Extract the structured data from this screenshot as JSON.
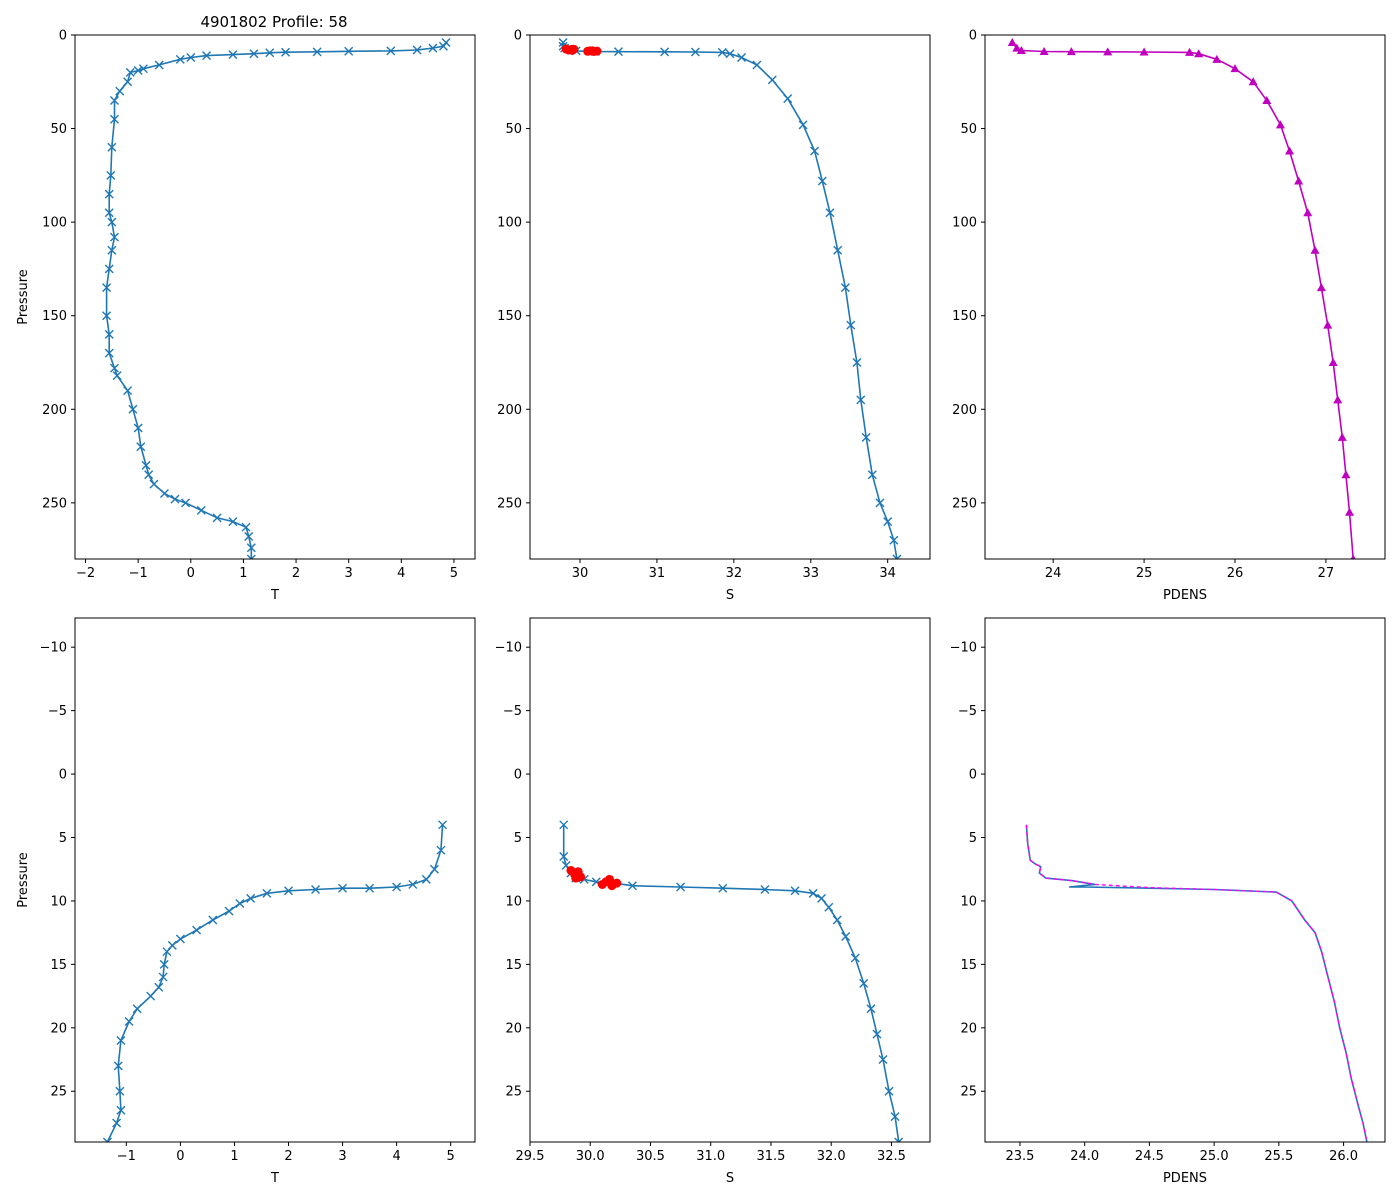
{
  "figure": {
    "title": "4901802 Profile: 58"
  },
  "colors": {
    "series": "#1f77b4",
    "highlight": "#ff0000",
    "density": "#bf00bf",
    "density_dash": "#ff00ff"
  },
  "chart_data": [
    {
      "type": "line",
      "marker": "x",
      "title": "4901802 Profile: 58",
      "xlabel": "T",
      "ylabel": "Pressure",
      "xlim": [
        -2.2,
        5.4
      ],
      "ylim": [
        280,
        0
      ],
      "xticks": [
        -2,
        -1,
        0,
        1,
        2,
        3,
        4,
        5
      ],
      "yticks": [
        0,
        50,
        100,
        150,
        200,
        250
      ],
      "xtick_labels": [
        "−2",
        "−1",
        "0",
        "1",
        "2",
        "3",
        "4",
        "5"
      ],
      "ytick_labels": [
        "0",
        "50",
        "100",
        "150",
        "200",
        "250"
      ],
      "series": [
        {
          "name": "T",
          "color": "#1f77b4",
          "x": [
            4.85,
            4.8,
            4.6,
            4.3,
            3.8,
            3.0,
            2.4,
            1.8,
            1.5,
            1.2,
            0.8,
            0.3,
            0.0,
            -0.2,
            -0.6,
            -0.9,
            -1.0,
            -1.15,
            -1.2,
            -1.35,
            -1.45,
            -1.45,
            -1.5,
            -1.52,
            -1.55,
            -1.55,
            -1.5,
            -1.45,
            -1.5,
            -1.55,
            -1.6,
            -1.6,
            -1.55,
            -1.55,
            -1.45,
            -1.4,
            -1.2,
            -1.1,
            -1.0,
            -0.95,
            -0.85,
            -0.8,
            -0.7,
            -0.5,
            -0.3,
            -0.1,
            0.2,
            0.5,
            0.8,
            1.05,
            1.1,
            1.15,
            1.15
          ],
          "y": [
            4,
            6,
            7,
            8,
            8.5,
            8.7,
            9,
            9.2,
            9.5,
            10,
            10.5,
            11,
            12,
            13,
            16,
            18,
            19,
            20,
            25,
            30,
            35,
            45,
            60,
            75,
            85,
            95,
            100,
            108,
            115,
            125,
            135,
            150,
            160,
            170,
            178,
            182,
            190,
            200,
            210,
            220,
            230,
            235,
            240,
            245,
            248,
            250,
            254,
            258,
            260,
            263,
            268,
            274,
            280
          ]
        }
      ]
    },
    {
      "type": "line",
      "marker": "x",
      "xlabel": "S",
      "ylabel": "",
      "xlim": [
        29.35,
        34.55
      ],
      "ylim": [
        280,
        0
      ],
      "xticks": [
        30,
        31,
        32,
        33,
        34
      ],
      "yticks": [
        0,
        50,
        100,
        150,
        200,
        250
      ],
      "xtick_labels": [
        "30",
        "31",
        "32",
        "33",
        "34"
      ],
      "ytick_labels": [
        "0",
        "50",
        "100",
        "150",
        "200",
        "250"
      ],
      "series": [
        {
          "name": "S",
          "color": "#1f77b4",
          "x": [
            29.78,
            29.78,
            29.8,
            29.85,
            29.95,
            30.2,
            30.5,
            31.1,
            31.5,
            31.85,
            31.95,
            32.1,
            32.3,
            32.5,
            32.7,
            32.9,
            33.05,
            33.15,
            33.25,
            33.35,
            33.45,
            33.52,
            33.6,
            33.65,
            33.72,
            33.8,
            33.9,
            34.0,
            34.08,
            34.12
          ],
          "y": [
            4,
            6,
            7,
            7.5,
            8.5,
            8.8,
            8.9,
            9.0,
            9.1,
            9.3,
            10,
            12,
            16,
            24,
            34,
            48,
            62,
            78,
            95,
            115,
            135,
            155,
            175,
            195,
            215,
            235,
            250,
            260,
            270,
            280
          ]
        }
      ],
      "highlight_points": {
        "color": "#ff0000",
        "x": [
          29.82,
          29.85,
          29.88,
          29.9,
          29.92,
          30.1,
          30.13,
          30.16,
          30.18,
          30.22
        ],
        "y": [
          7.5,
          8.0,
          7.8,
          8.2,
          7.6,
          8.7,
          8.5,
          8.4,
          8.8,
          8.6
        ]
      }
    },
    {
      "type": "line",
      "marker": "^",
      "xlabel": "PDENS",
      "ylabel": "",
      "xlim": [
        23.25,
        27.65
      ],
      "ylim": [
        280,
        0
      ],
      "xticks": [
        24,
        25,
        26,
        27
      ],
      "yticks": [
        0,
        50,
        100,
        150,
        200,
        250
      ],
      "xtick_labels": [
        "24",
        "25",
        "26",
        "27"
      ],
      "ytick_labels": [
        "0",
        "50",
        "100",
        "150",
        "200",
        "250"
      ],
      "series": [
        {
          "name": "PDENS",
          "color": "#bf00bf",
          "x": [
            23.55,
            23.6,
            23.65,
            23.9,
            24.2,
            24.6,
            25.0,
            25.5,
            25.6,
            25.8,
            26.0,
            26.2,
            26.35,
            26.5,
            26.6,
            26.7,
            26.8,
            26.88,
            26.95,
            27.02,
            27.08,
            27.13,
            27.18,
            27.22,
            27.26,
            27.3
          ],
          "y": [
            4,
            7,
            8.3,
            8.8,
            8.9,
            9.0,
            9.1,
            9.3,
            10,
            13,
            18,
            25,
            35,
            48,
            62,
            78,
            95,
            115,
            135,
            155,
            175,
            195,
            215,
            235,
            255,
            280
          ]
        }
      ]
    },
    {
      "type": "line",
      "marker": "x",
      "xlabel": "T",
      "ylabel": "Pressure",
      "xlim": [
        -1.95,
        5.45
      ],
      "ylim": [
        29,
        -12.3
      ],
      "xticks": [
        -1,
        0,
        1,
        2,
        3,
        4,
        5
      ],
      "yticks": [
        -10,
        -5,
        0,
        5,
        10,
        15,
        20,
        25
      ],
      "xtick_labels": [
        "−1",
        "0",
        "1",
        "2",
        "3",
        "4",
        "5"
      ],
      "ytick_labels": [
        "−10",
        "−5",
        "0",
        "5",
        "10",
        "15",
        "20",
        "25"
      ],
      "series": [
        {
          "name": "T",
          "color": "#1f77b4",
          "x": [
            4.85,
            4.82,
            4.7,
            4.55,
            4.3,
            4.0,
            3.5,
            3.0,
            2.5,
            2.0,
            1.6,
            1.3,
            1.1,
            0.9,
            0.6,
            0.3,
            0.0,
            -0.15,
            -0.25,
            -0.3,
            -0.32,
            -0.4,
            -0.55,
            -0.8,
            -0.95,
            -1.1,
            -1.15,
            -1.12,
            -1.1,
            -1.18,
            -1.35
          ],
          "y": [
            4,
            6,
            7.5,
            8.3,
            8.7,
            8.9,
            9.0,
            9.0,
            9.1,
            9.2,
            9.4,
            9.8,
            10.2,
            10.8,
            11.5,
            12.3,
            13.0,
            13.5,
            14,
            15,
            16,
            16.8,
            17.5,
            18.5,
            19.5,
            21,
            23,
            25,
            26.5,
            27.5,
            29
          ]
        }
      ]
    },
    {
      "type": "line",
      "marker": "x",
      "xlabel": "S",
      "ylabel": "",
      "xlim": [
        29.5,
        32.82
      ],
      "ylim": [
        29,
        -12.3
      ],
      "xticks": [
        29.5,
        30.0,
        30.5,
        31.0,
        31.5,
        32.0,
        32.5
      ],
      "yticks": [
        -10,
        -5,
        0,
        5,
        10,
        15,
        20,
        25
      ],
      "xtick_labels": [
        "29.5",
        "30.0",
        "30.5",
        "31.0",
        "31.5",
        "32.0",
        "32.5"
      ],
      "ytick_labels": [
        "−10",
        "−5",
        "0",
        "5",
        "10",
        "15",
        "20",
        "25"
      ],
      "series": [
        {
          "name": "S",
          "color": "#1f77b4",
          "x": [
            29.78,
            29.78,
            29.8,
            29.84,
            29.88,
            29.95,
            30.05,
            30.2,
            30.35,
            30.75,
            31.1,
            31.45,
            31.7,
            31.85,
            31.92,
            31.98,
            32.05,
            32.12,
            32.2,
            32.27,
            32.33,
            32.38,
            32.43,
            32.48,
            32.53,
            32.56
          ],
          "y": [
            4,
            6.5,
            7.2,
            7.8,
            8.2,
            8.3,
            8.5,
            8.6,
            8.8,
            8.9,
            9.0,
            9.1,
            9.2,
            9.4,
            9.8,
            10.5,
            11.5,
            12.8,
            14.5,
            16.5,
            18.5,
            20.5,
            22.5,
            25,
            27,
            29
          ]
        }
      ],
      "highlight_points": {
        "color": "#ff0000",
        "x": [
          29.84,
          29.87,
          29.9,
          29.92,
          29.88,
          30.1,
          30.13,
          30.16,
          30.18,
          30.22
        ],
        "y": [
          7.6,
          7.9,
          7.7,
          8.1,
          8.2,
          8.7,
          8.5,
          8.3,
          8.8,
          8.6
        ]
      }
    },
    {
      "type": "line",
      "marker": "none",
      "xlabel": "PDENS",
      "ylabel": "",
      "xlim": [
        23.23,
        26.32
      ],
      "ylim": [
        29,
        -12.3
      ],
      "xticks": [
        23.5,
        24.0,
        24.5,
        25.0,
        25.5,
        26.0
      ],
      "yticks": [
        -10,
        -5,
        0,
        5,
        10,
        15,
        20,
        25
      ],
      "xtick_labels": [
        "23.5",
        "24.0",
        "24.5",
        "25.0",
        "25.5",
        "26.0"
      ],
      "ytick_labels": [
        "−10",
        "−5",
        "0",
        "5",
        "10",
        "15",
        "20",
        "25"
      ],
      "series": [
        {
          "name": "PDENS",
          "color": "#1f77b4",
          "x": [
            23.55,
            23.56,
            23.58,
            23.62,
            23.66,
            23.65,
            23.7,
            23.9,
            24.08,
            23.88,
            24.0,
            24.5,
            25.0,
            25.48,
            25.6,
            25.7,
            25.78,
            25.83,
            25.88,
            25.93,
            25.97,
            26.02,
            26.06,
            26.11,
            26.15,
            26.18
          ],
          "y": [
            4,
            5.5,
            6.8,
            7.1,
            7.3,
            7.8,
            8.2,
            8.4,
            8.7,
            8.9,
            8.9,
            9.0,
            9.1,
            9.3,
            10,
            11.5,
            12.5,
            14,
            16,
            18,
            20,
            22,
            24,
            26,
            27.5,
            29
          ]
        },
        {
          "name": "PDENS (dashed)",
          "color": "#ff00ff",
          "x": [
            23.55,
            23.56,
            23.58,
            23.62,
            23.66,
            23.65,
            23.7,
            23.9,
            24.08,
            24.5,
            25.0,
            25.48,
            25.6,
            25.7,
            25.78,
            25.83,
            25.88,
            25.93,
            25.97,
            26.02,
            26.06,
            26.11,
            26.15,
            26.18
          ],
          "y": [
            4,
            5.5,
            6.8,
            7.1,
            7.3,
            7.8,
            8.2,
            8.4,
            8.7,
            8.95,
            9.1,
            9.3,
            10,
            11.5,
            12.5,
            14,
            16,
            18,
            20,
            22,
            24,
            26,
            27.5,
            29
          ]
        }
      ]
    }
  ]
}
